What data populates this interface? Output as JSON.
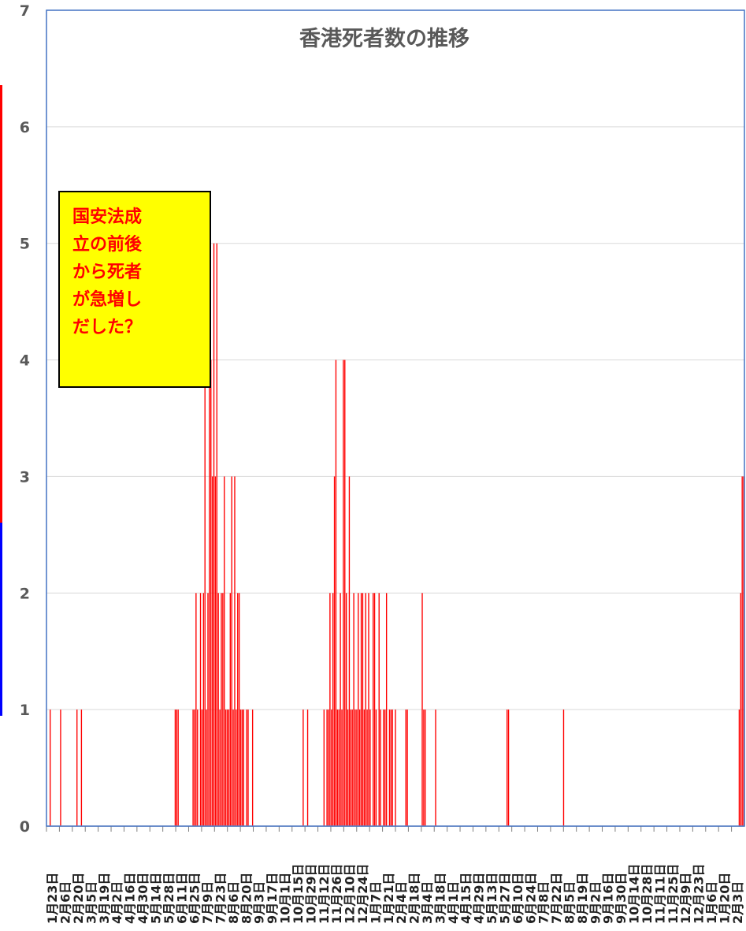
{
  "chart_data": {
    "type": "bar",
    "title": "香港死者数の推移",
    "xlabel": "",
    "ylabel": "",
    "ylim": [
      0,
      7
    ],
    "y_ticks": [
      "0",
      "1",
      "2",
      "3",
      "4",
      "5",
      "6",
      "7"
    ],
    "grid": true,
    "legend": "none",
    "bar_color": "#ff0000",
    "series": [
      {
        "values": [
          0,
          0,
          1,
          0,
          0,
          0,
          0,
          0,
          0,
          1,
          0,
          0,
          0,
          0,
          0,
          0,
          0,
          0,
          0,
          0,
          1,
          0,
          0,
          1,
          0,
          0,
          0,
          0,
          0,
          0,
          0,
          0,
          0,
          0,
          0,
          0,
          0,
          0,
          0,
          0,
          0,
          0,
          0,
          0,
          0,
          0,
          0,
          0,
          0,
          0,
          0,
          0,
          0,
          0,
          0,
          0,
          0,
          0,
          0,
          0,
          0,
          0,
          0,
          0,
          0,
          0,
          0,
          0,
          0,
          0,
          0,
          0,
          0,
          0,
          0,
          0,
          0,
          0,
          0,
          0,
          0,
          0,
          0,
          0,
          0,
          0,
          1,
          1,
          1,
          0,
          0,
          0,
          0,
          0,
          0,
          0,
          0,
          0,
          1,
          1,
          2,
          1,
          0,
          2,
          1,
          2,
          4,
          1,
          2,
          4,
          4,
          3,
          5,
          3,
          5,
          2,
          1,
          2,
          2,
          3,
          1,
          1,
          1,
          2,
          3,
          1,
          3,
          1,
          2,
          2,
          1,
          1,
          1,
          0,
          1,
          1,
          0,
          0,
          1,
          0,
          0,
          0,
          0,
          0,
          0,
          0,
          0,
          0,
          0,
          0,
          0,
          0,
          0,
          0,
          0,
          0,
          0,
          0,
          0,
          0,
          0,
          0,
          0,
          0,
          0,
          0,
          0,
          0,
          0,
          0,
          0,
          0,
          1,
          0,
          0,
          1,
          0,
          0,
          0,
          0,
          0,
          0,
          0,
          0,
          0,
          0,
          1,
          0,
          1,
          1,
          2,
          1,
          2,
          3,
          4,
          1,
          1,
          2,
          1,
          4,
          4,
          2,
          1,
          3,
          1,
          1,
          2,
          1,
          1,
          2,
          1,
          2,
          2,
          1,
          2,
          1,
          2,
          1,
          0,
          2,
          2,
          1,
          0,
          2,
          1,
          0,
          1,
          1,
          2,
          0,
          1,
          1,
          1,
          0,
          1,
          0,
          0,
          0,
          0,
          0,
          0,
          1,
          1,
          0,
          0,
          0,
          0,
          0,
          0,
          0,
          0,
          0,
          2,
          1,
          1,
          0,
          0,
          0,
          0,
          0,
          0,
          1,
          0,
          0,
          0,
          0,
          0,
          0,
          0,
          0,
          0,
          0,
          0,
          0,
          0,
          0,
          0,
          0,
          0,
          0,
          0,
          0,
          0,
          0,
          0,
          0,
          0,
          0,
          0,
          0,
          0,
          0,
          0,
          0,
          0,
          0,
          0,
          0,
          0,
          0,
          0,
          0,
          0,
          0,
          0,
          0,
          0,
          0,
          0,
          1,
          1,
          0,
          0,
          0,
          0,
          0,
          0,
          0,
          0,
          0,
          0,
          0,
          0,
          0,
          0,
          0,
          0,
          0,
          0,
          0,
          0,
          0,
          0,
          0,
          0,
          0,
          0,
          0,
          0,
          0,
          0,
          0,
          0,
          0,
          0,
          0,
          0,
          1,
          0,
          0,
          0,
          0,
          0,
          0,
          0,
          0,
          0,
          0,
          0,
          0,
          0,
          0,
          0,
          0,
          0,
          0,
          0,
          0,
          0,
          0,
          0,
          0,
          0,
          0,
          0,
          0,
          0,
          0,
          0,
          0,
          0,
          0,
          0,
          0,
          0,
          0,
          0,
          0,
          0,
          0,
          0,
          0,
          0,
          0,
          0,
          0,
          0,
          0,
          0,
          0,
          0,
          0,
          0,
          0,
          0,
          0,
          0,
          0,
          0,
          0,
          0,
          0,
          0,
          0,
          0,
          0,
          0,
          0,
          0,
          0,
          0,
          0,
          0,
          0,
          0,
          0,
          0,
          0,
          0,
          0,
          0,
          0,
          0,
          0,
          0,
          0,
          0,
          0,
          0,
          0,
          0,
          0,
          0,
          0,
          0,
          0,
          0,
          0,
          0,
          0,
          0,
          0,
          0,
          0,
          0,
          0,
          0,
          0,
          0,
          0,
          0,
          0,
          0,
          0,
          0,
          1,
          2,
          3,
          3
        ]
      }
    ],
    "x_tick_labels": [
      "1月23日",
      "2月6日",
      "2月20日",
      "3月5日",
      "3月19日",
      "4月2日",
      "4月16日",
      "4月30日",
      "5月14日",
      "5月28日",
      "6月11日",
      "6月25日",
      "7月9日",
      "7月23日",
      "8月6日",
      "8月20日",
      "9月3日",
      "9月17日",
      "10月1日",
      "10月15日",
      "10月29日",
      "11月12日",
      "11月26日",
      "12月10日",
      "12月24日",
      "1月7日",
      "1月21日",
      "2月4日",
      "2月18日",
      "3月4日",
      "3月18日",
      "4月1日",
      "4月15日",
      "4月29日",
      "5月13日",
      "5月27日",
      "6月10日",
      "6月24日",
      "7月8日",
      "7月22日",
      "8月5日",
      "8月19日",
      "9月2日",
      "9月16日",
      "9月30日",
      "10月14日",
      "10月28日",
      "11月11日",
      "11月25日",
      "12月9日",
      "12月23日",
      "1月6日",
      "1月20日",
      "2月3日"
    ],
    "annotations": [
      {
        "text": "国安法成\n立の前後\nから死者\nが急増し\nだした？"
      }
    ]
  },
  "colors": {
    "side_strip_red": "#ff0000",
    "side_strip_blue": "#0000ff",
    "axis_frame": "#4472c4",
    "gridline": "#d9d9d9"
  }
}
